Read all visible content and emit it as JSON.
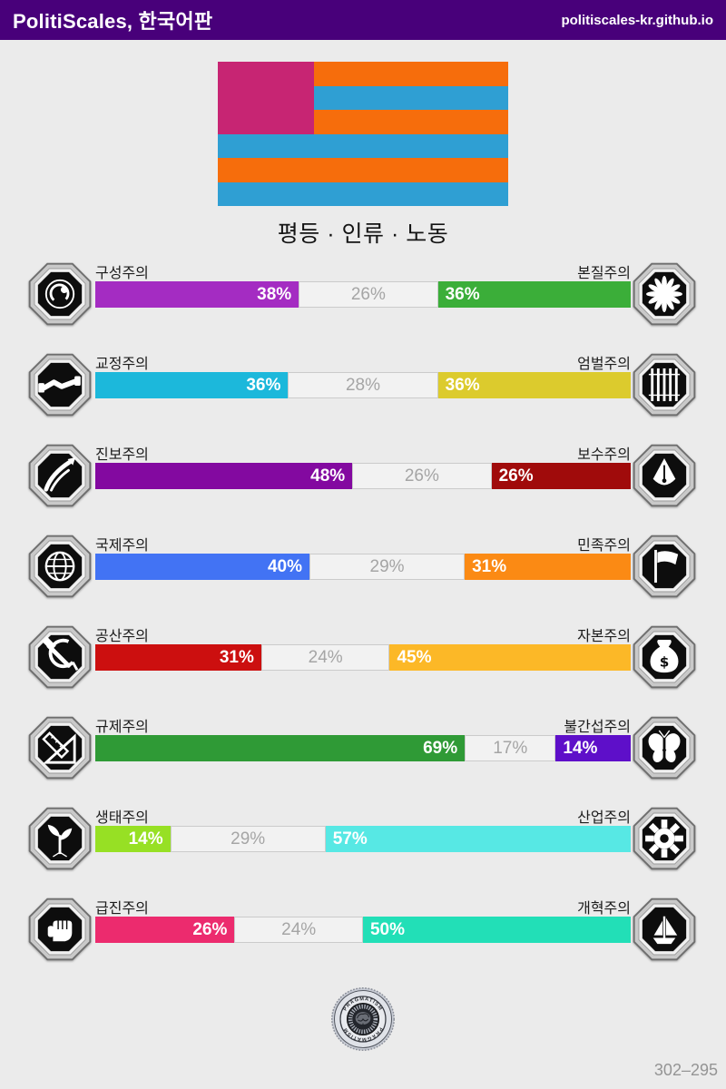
{
  "header": {
    "title": "PolitiScales, 한국어판",
    "url": "politiscales-kr.github.io",
    "bg_color": "#48007A"
  },
  "flag": {
    "stripe_colors": [
      "#2F9FD3",
      "#F66D0C",
      "#2F9FD3",
      "#F66D0C",
      "#2F9FD3",
      "#F66D0C"
    ],
    "canton_color": "#C72573"
  },
  "subtitle": "평등 · 인류 · 노동",
  "axes": [
    {
      "left": {
        "label": "구성주의",
        "value": 38,
        "color": "#A42CC2",
        "icon": "constructivism-embryo"
      },
      "neutral": {
        "value": 26
      },
      "right": {
        "label": "본질주의",
        "value": 36,
        "color": "#3BAE39",
        "icon": "essentialism-flower"
      }
    },
    {
      "left": {
        "label": "교정주의",
        "value": 36,
        "color": "#1CB8DB",
        "icon": "rehabilitative-handshake"
      },
      "neutral": {
        "value": 28
      },
      "right": {
        "label": "엄벌주의",
        "value": 36,
        "color": "#DCCB2D",
        "icon": "punitive-prison-bars"
      }
    },
    {
      "left": {
        "label": "진보주의",
        "value": 48,
        "color": "#8309A0",
        "icon": "progressive-hand"
      },
      "neutral": {
        "value": 26
      },
      "right": {
        "label": "보수주의",
        "value": 26,
        "color": "#A00B0B",
        "icon": "conservative-pen-nib"
      }
    },
    {
      "left": {
        "label": "국제주의",
        "value": 40,
        "color": "#4273F4",
        "icon": "internationalism-globe"
      },
      "neutral": {
        "value": 29
      },
      "right": {
        "label": "민족주의",
        "value": 31,
        "color": "#FB8A14",
        "icon": "nationalism-flag"
      }
    },
    {
      "left": {
        "label": "공산주의",
        "value": 31,
        "color": "#CC0F0F",
        "icon": "communism-hammer-sickle"
      },
      "neutral": {
        "value": 24
      },
      "right": {
        "label": "자본주의",
        "value": 45,
        "color": "#FCB827",
        "icon": "capitalism-money-bag"
      }
    },
    {
      "left": {
        "label": "규제주의",
        "value": 69,
        "color": "#2F9A36",
        "icon": "regulation-ruler"
      },
      "neutral": {
        "value": 17
      },
      "right": {
        "label": "불간섭주의",
        "value": 14,
        "color": "#5E0FC9",
        "icon": "laissez-faire-butterfly"
      }
    },
    {
      "left": {
        "label": "생태주의",
        "value": 14,
        "color": "#97E024",
        "icon": "ecology-sprout"
      },
      "neutral": {
        "value": 29
      },
      "right": {
        "label": "산업주의",
        "value": 57,
        "color": "#57E8E4",
        "icon": "industrialism-gear"
      }
    },
    {
      "left": {
        "label": "급진주의",
        "value": 26,
        "color": "#EC2B6E",
        "icon": "revolution-fist"
      },
      "neutral": {
        "value": 24
      },
      "right": {
        "label": "개혁주의",
        "value": 50,
        "color": "#22DFB7",
        "icon": "reformism-boat"
      }
    }
  ],
  "bottom_badge": {
    "label": "PRAGMATISM"
  },
  "footer": {
    "code": "302–295"
  },
  "colors": {
    "page_bg": "#EBEBEB",
    "neutral_fill": "#F2F2F2",
    "neutral_border": "#CBCBCB",
    "neutral_text": "#A5A5A5",
    "footer_text": "#949494"
  },
  "chart_data": {
    "type": "bar",
    "title": "평등 · 인류 · 노동",
    "categories": [
      "구성주의/본질주의",
      "교정주의/엄벌주의",
      "진보주의/보수주의",
      "국제주의/민족주의",
      "공산주의/자본주의",
      "규제주의/불간섭주의",
      "생태주의/산업주의",
      "급진주의/개혁주의"
    ],
    "series": [
      {
        "name": "left",
        "values": [
          38,
          36,
          48,
          40,
          31,
          69,
          14,
          26
        ]
      },
      {
        "name": "neutral",
        "values": [
          26,
          28,
          26,
          29,
          24,
          17,
          29,
          24
        ]
      },
      {
        "name": "right",
        "values": [
          36,
          36,
          26,
          31,
          45,
          14,
          57,
          50
        ]
      }
    ],
    "xlim": [
      0,
      100
    ]
  }
}
